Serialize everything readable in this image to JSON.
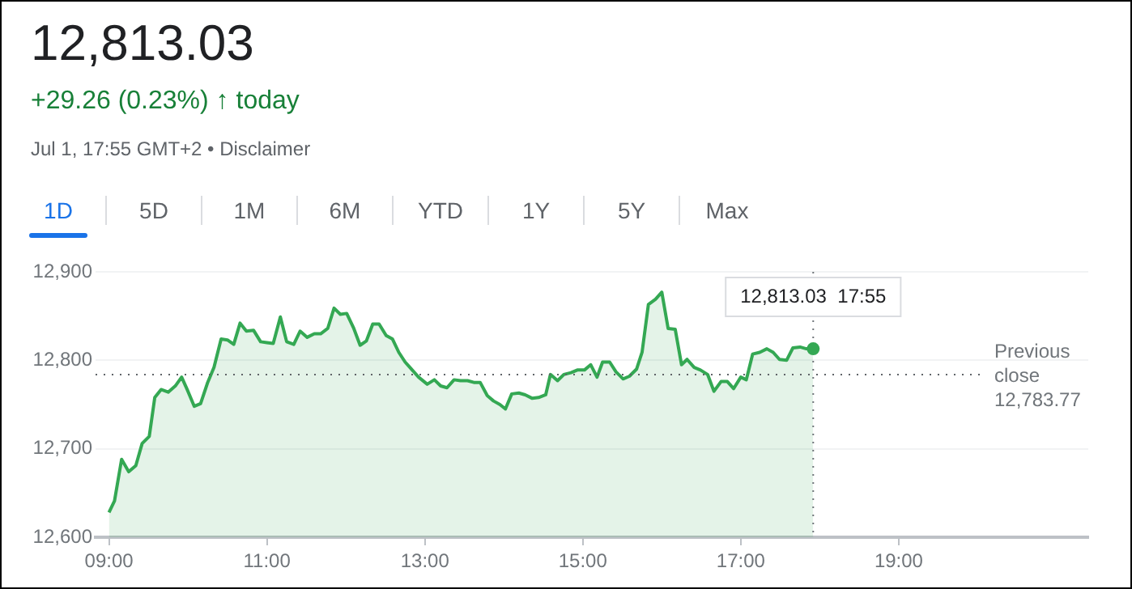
{
  "chart_data": {
    "type": "area",
    "title": "12,813.03",
    "subtitle": "+29.26 (0.23%) ↑ today",
    "annotations": [
      "Jul 1, 17:55 GMT+2 • Disclaimer",
      "1D",
      "5D",
      "1M",
      "6M",
      "YTD",
      "1Y",
      "5Y",
      "Max",
      {
        "text": "12,813.03  17:55",
        "x": 17.917,
        "y": 12813.03
      }
    ],
    "x": [
      9.0,
      9.07,
      9.16,
      9.25,
      9.34,
      9.42,
      9.51,
      9.58,
      9.66,
      9.75,
      9.84,
      9.92,
      9.99,
      10.08,
      10.16,
      10.25,
      10.33,
      10.42,
      10.5,
      10.58,
      10.66,
      10.74,
      10.83,
      10.92,
      11.0,
      11.08,
      11.17,
      11.25,
      11.34,
      11.42,
      11.51,
      11.6,
      11.68,
      11.77,
      11.85,
      11.93,
      12.01,
      12.1,
      12.18,
      12.26,
      12.34,
      12.42,
      12.51,
      12.59,
      12.67,
      12.75,
      12.84,
      12.92,
      13.03,
      13.12,
      13.2,
      13.28,
      13.37,
      13.45,
      13.54,
      13.62,
      13.7,
      13.79,
      13.87,
      13.95,
      14.02,
      14.1,
      14.19,
      14.27,
      14.36,
      14.44,
      14.53,
      14.59,
      14.68,
      14.76,
      14.85,
      14.93,
      15.02,
      15.1,
      15.18,
      15.25,
      15.34,
      15.42,
      15.51,
      15.59,
      15.68,
      15.75,
      15.83,
      15.92,
      16.0,
      16.08,
      16.17,
      16.25,
      16.32,
      16.41,
      16.49,
      16.58,
      16.66,
      16.75,
      16.83,
      16.91,
      17.0,
      17.07,
      17.15,
      17.24,
      17.33,
      17.41,
      17.49,
      17.58,
      17.66,
      17.75,
      17.83,
      17.917
    ],
    "series": [
      {
        "color": "#34a853",
        "values": [
          12628,
          12641,
          12688,
          12674,
          12681,
          12706,
          12714,
          12758,
          12767,
          12764,
          12771,
          12781,
          12767,
          12748,
          12751,
          12775,
          12792,
          12824,
          12823,
          12818,
          12842,
          12833,
          12834,
          12821,
          12820,
          12819,
          12849,
          12821,
          12818,
          12833,
          12826,
          12830,
          12830,
          12836,
          12859,
          12852,
          12853,
          12836,
          12817,
          12822,
          12841,
          12841,
          12828,
          12824,
          12809,
          12798,
          12789,
          12781,
          12773,
          12778,
          12771,
          12769,
          12778,
          12777,
          12777,
          12775,
          12775,
          12760,
          12754,
          12750,
          12745,
          12762,
          12763,
          12761,
          12757,
          12758,
          12761,
          12784,
          12777,
          12784,
          12786,
          12789,
          12789,
          12795,
          12781,
          12798,
          12798,
          12787,
          12779,
          12782,
          12790,
          12809,
          12863,
          12869,
          12877,
          12836,
          12835,
          12795,
          12801,
          12792,
          12789,
          12784,
          12765,
          12776,
          12776,
          12768,
          12781,
          12778,
          12807,
          12809,
          12813,
          12809,
          12801,
          12800,
          12814,
          12815,
          12813,
          12813.03
        ]
      }
    ],
    "xlim": [
      8.83,
      21.4
    ],
    "xticks": [
      {
        "value": 9,
        "label": "09:00"
      },
      {
        "value": 11,
        "label": "11:00"
      },
      {
        "value": 13,
        "label": "13:00"
      },
      {
        "value": 15,
        "label": "15:00"
      },
      {
        "value": 17,
        "label": "17:00"
      },
      {
        "value": 19,
        "label": "19:00"
      }
    ],
    "ylim": [
      12600,
      12900
    ],
    "yticks": [
      {
        "value": 12600,
        "label": "12,600"
      },
      {
        "value": 12700,
        "label": "12,700"
      },
      {
        "value": 12800,
        "label": "12,800"
      },
      {
        "value": 12900,
        "label": "12,900"
      }
    ],
    "ref_lines": [
      {
        "axis": "y",
        "value": 12783.77,
        "label": "Previous close 12,783.77",
        "line_style": "dotted",
        "color": "#5f6368"
      },
      {
        "axis": "x",
        "value": 17.917,
        "line_style": "dotted",
        "color": "#70757a"
      }
    ],
    "grid": "y",
    "legend": false,
    "line_style": "solid"
  }
}
